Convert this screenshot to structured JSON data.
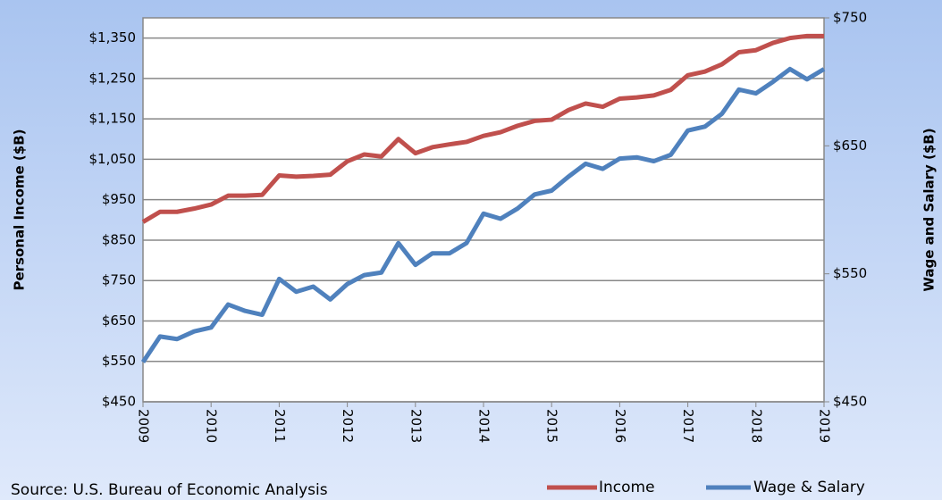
{
  "chart_data": {
    "type": "line",
    "x": [
      2009,
      2009.25,
      2009.5,
      2009.75,
      2010,
      2010.25,
      2010.5,
      2010.75,
      2011,
      2011.25,
      2011.5,
      2011.75,
      2012,
      2012.25,
      2012.5,
      2012.75,
      2013,
      2013.25,
      2013.5,
      2013.75,
      2014,
      2014.25,
      2014.5,
      2014.75,
      2015,
      2015.25,
      2015.5,
      2015.75,
      2016,
      2016.25,
      2016.5,
      2016.75,
      2017,
      2017.25,
      2017.5,
      2017.75,
      2018,
      2018.25,
      2018.5,
      2018.75,
      2019
    ],
    "series": [
      {
        "name": "Income",
        "color": "#c0504d",
        "axis": "y",
        "values": [
          895,
          920,
          920,
          928,
          938,
          960,
          960,
          962,
          1010,
          1007,
          1009,
          1012,
          1045,
          1062,
          1057,
          1100,
          1065,
          1080,
          1087,
          1093,
          1108,
          1117,
          1133,
          1145,
          1148,
          1172,
          1188,
          1180,
          1200,
          1203,
          1208,
          1222,
          1258,
          1267,
          1285,
          1315,
          1320,
          1338,
          1350,
          1355,
          1355
        ]
      },
      {
        "name": "Wage & Salary",
        "color": "#4f81bd",
        "axis": "y2",
        "values": [
          481,
          501,
          499,
          505,
          508,
          526,
          521,
          518,
          546,
          536,
          540,
          530,
          542,
          549,
          551,
          574,
          557,
          566,
          566,
          574,
          597,
          593,
          601,
          612,
          615,
          626,
          636,
          632,
          640,
          641,
          638,
          643,
          662,
          665,
          675,
          694,
          691,
          700,
          710,
          702,
          710
        ]
      }
    ],
    "xlim": [
      2009,
      2019
    ],
    "xticks": [
      2009,
      2010,
      2011,
      2012,
      2013,
      2014,
      2015,
      2016,
      2017,
      2018,
      2019
    ],
    "ylim": [
      450,
      1400
    ],
    "yticks": [
      {
        "value": 450,
        "label": "$450"
      },
      {
        "value": 550,
        "label": "$550"
      },
      {
        "value": 650,
        "label": "$650"
      },
      {
        "value": 750,
        "label": "$750"
      },
      {
        "value": 850,
        "label": "$850"
      },
      {
        "value": 950,
        "label": "$950"
      },
      {
        "value": 1050,
        "label": "$1,050"
      },
      {
        "value": 1150,
        "label": "$1,150"
      },
      {
        "value": 1250,
        "label": "$1,250"
      },
      {
        "value": 1350,
        "label": "$1,350"
      }
    ],
    "y2lim": [
      450,
      750
    ],
    "y2ticks": [
      {
        "value": 450,
        "label": "$450"
      },
      {
        "value": 550,
        "label": "$550"
      },
      {
        "value": 650,
        "label": "$650"
      },
      {
        "value": 750,
        "label": "$750"
      }
    ],
    "ylabel": "Personal Income ($B)",
    "y2label": "Wage and Salary  ($B)",
    "source": "Source: U.S. Bureau of Economic Analysis",
    "grid": true,
    "legend": "bottom-right"
  }
}
